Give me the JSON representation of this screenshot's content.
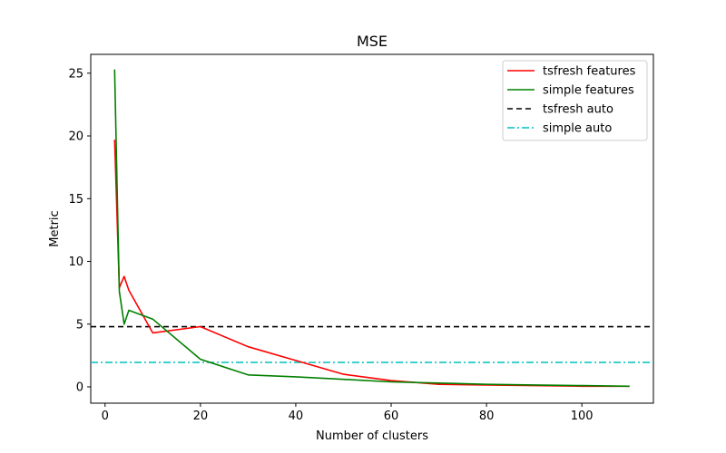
{
  "chart_data": {
    "type": "line",
    "title": "MSE",
    "xlabel": "Number of clusters",
    "ylabel": "Metric",
    "xlim": [
      -3,
      115
    ],
    "ylim": [
      -1.3,
      26.5
    ],
    "xticks": [
      0,
      20,
      40,
      60,
      80,
      100
    ],
    "yticks": [
      0,
      5,
      10,
      15,
      20,
      25
    ],
    "grid": false,
    "legend_position": "top-right",
    "series": [
      {
        "name": "tsfresh features",
        "kind": "line",
        "color": "#ff0000",
        "x": [
          2,
          3,
          4,
          5,
          10,
          20,
          30,
          40,
          50,
          60,
          70,
          80,
          90,
          100,
          110
        ],
        "y": [
          19.7,
          7.9,
          8.8,
          7.7,
          4.3,
          4.8,
          3.2,
          2.1,
          1.0,
          0.5,
          0.2,
          0.15,
          0.1,
          0.05,
          0.05
        ]
      },
      {
        "name": "simple features",
        "kind": "line",
        "color": "#008000",
        "x": [
          2,
          3,
          4,
          5,
          10,
          20,
          30,
          40,
          50,
          60,
          70,
          80,
          90,
          100,
          110
        ],
        "y": [
          25.3,
          7.6,
          5.0,
          6.1,
          5.4,
          2.2,
          0.95,
          0.8,
          0.6,
          0.4,
          0.3,
          0.2,
          0.15,
          0.1,
          0.05
        ]
      },
      {
        "name": "tsfresh auto",
        "kind": "hline",
        "color": "#000000",
        "dash": "dashed",
        "y": 4.8
      },
      {
        "name": "simple auto",
        "kind": "hline",
        "color": "#00bfbf",
        "dash": "dashdot",
        "y": 1.95
      }
    ]
  }
}
